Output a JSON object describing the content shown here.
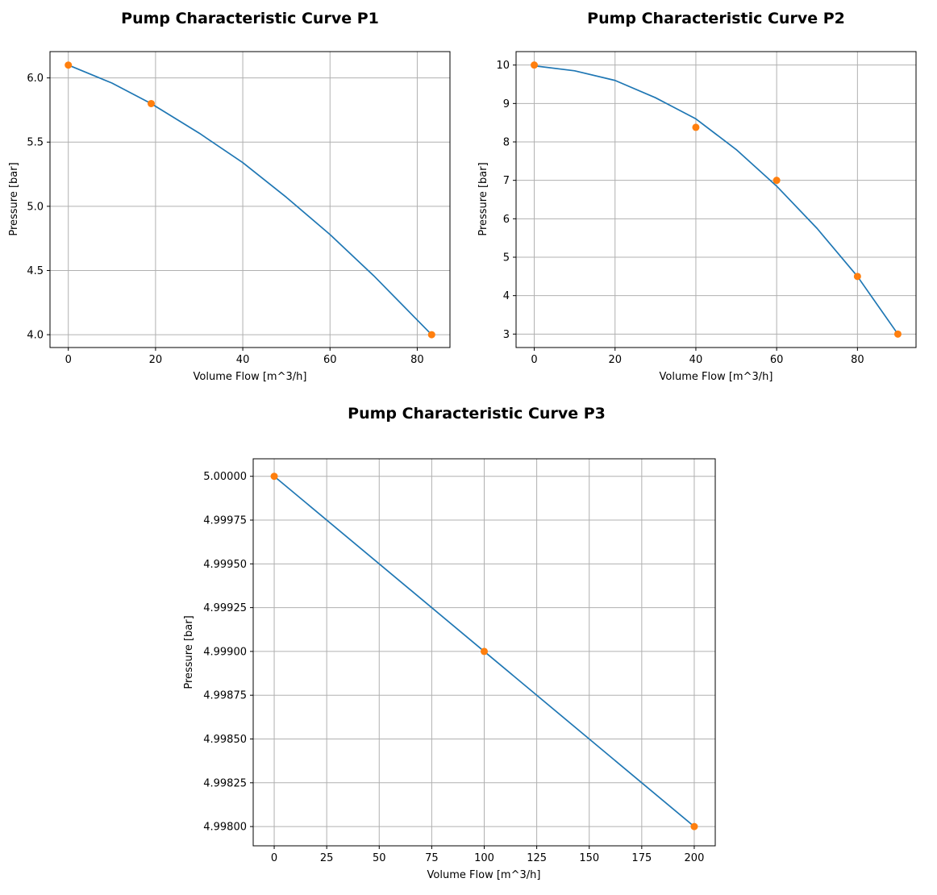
{
  "chart_data": [
    {
      "type": "line",
      "title": "Pump Characteristic Curve P1",
      "xlabel": "Volume Flow [m^3/h]",
      "ylabel": "Pressure [bar]",
      "xlim": [
        -4.2,
        87.5
      ],
      "ylim": [
        3.9,
        6.205
      ],
      "xticks": [
        0,
        20,
        40,
        60,
        80
      ],
      "yticks": [
        4.0,
        4.5,
        5.0,
        5.5,
        6.0
      ],
      "ytick_decimals": 1,
      "grid": true,
      "series": [
        {
          "style": "fitted-curve",
          "color": "#1f77b4",
          "x": [
            0,
            10,
            19,
            30,
            40,
            50,
            60,
            70,
            83.3
          ],
          "y": [
            6.1,
            5.96,
            5.8,
            5.57,
            5.34,
            5.07,
            4.78,
            4.46,
            4.0
          ]
        },
        {
          "style": "data-points",
          "color": "#ff7f0e",
          "x": [
            0,
            19,
            83.3
          ],
          "y": [
            6.1,
            5.8,
            4.0
          ]
        }
      ]
    },
    {
      "type": "line",
      "title": "Pump Characteristic Curve P2",
      "xlabel": "Volume Flow [m^3/h]",
      "ylabel": "Pressure [bar]",
      "xlim": [
        -4.5,
        94.5
      ],
      "ylim": [
        2.65,
        10.35
      ],
      "xticks": [
        0,
        20,
        40,
        60,
        80
      ],
      "yticks": [
        3,
        4,
        5,
        6,
        7,
        8,
        9,
        10
      ],
      "ytick_decimals": 0,
      "grid": true,
      "series": [
        {
          "style": "fitted-curve",
          "color": "#1f77b4",
          "x": [
            0,
            10,
            20,
            30,
            40,
            50,
            60,
            70,
            80,
            90
          ],
          "y": [
            9.98,
            9.85,
            9.6,
            9.15,
            8.6,
            7.8,
            6.85,
            5.75,
            4.5,
            3.0
          ]
        },
        {
          "style": "data-points",
          "color": "#ff7f0e",
          "x": [
            0,
            40,
            60,
            80,
            90
          ],
          "y": [
            10.0,
            8.38,
            7.0,
            4.5,
            3.0
          ]
        }
      ]
    },
    {
      "type": "line",
      "title": "Pump Characteristic Curve P3",
      "xlabel": "Volume Flow [m^3/h]",
      "ylabel": "Pressure [bar]",
      "xlim": [
        -10,
        210
      ],
      "ylim": [
        4.99789,
        5.0001
      ],
      "xticks": [
        0,
        25,
        50,
        75,
        100,
        125,
        150,
        175,
        200
      ],
      "yticks": [
        4.998,
        4.99825,
        4.9985,
        4.99875,
        4.999,
        4.99925,
        4.9995,
        4.99975,
        5.0
      ],
      "ytick_decimals": 5,
      "grid": true,
      "series": [
        {
          "style": "fitted-curve",
          "color": "#1f77b4",
          "x": [
            0,
            100,
            200
          ],
          "y": [
            5.0,
            4.999,
            4.998
          ]
        },
        {
          "style": "data-points",
          "color": "#ff7f0e",
          "x": [
            0,
            100,
            200
          ],
          "y": [
            5.0,
            4.999,
            4.998
          ]
        }
      ]
    }
  ]
}
